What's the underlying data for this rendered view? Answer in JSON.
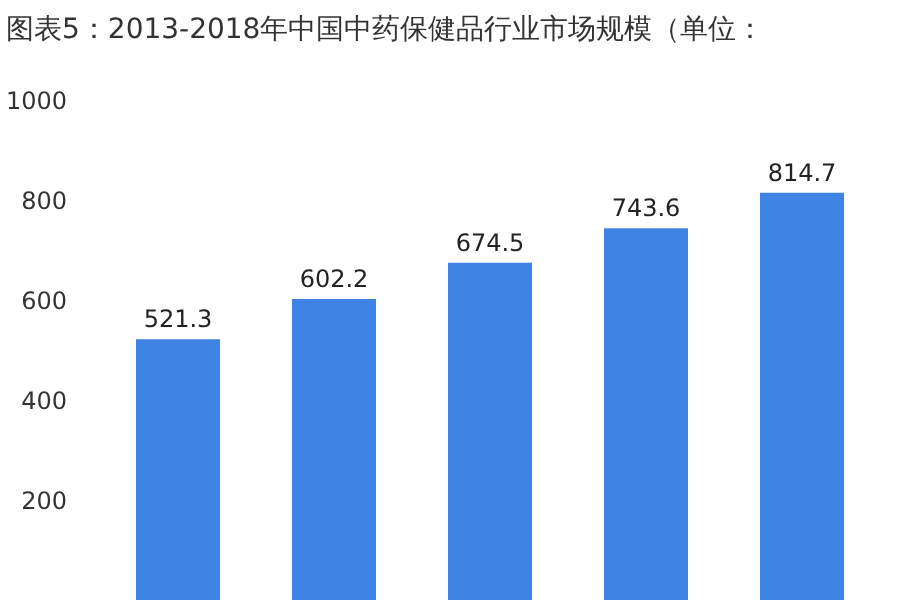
{
  "chart_data": {
    "type": "bar",
    "title": "图表5：2013-2018年中国中药保健品行业市场规模（单位：",
    "categories": [
      null,
      null,
      null,
      null,
      null
    ],
    "values": [
      521.3,
      602.2,
      674.5,
      743.6,
      814.7
    ],
    "color": "#3f84e5",
    "ylim": [
      0,
      1200
    ],
    "yticks": [
      200,
      400,
      600,
      800,
      1000
    ],
    "data_labels": true,
    "grid": false,
    "tick_labels": "y"
  }
}
